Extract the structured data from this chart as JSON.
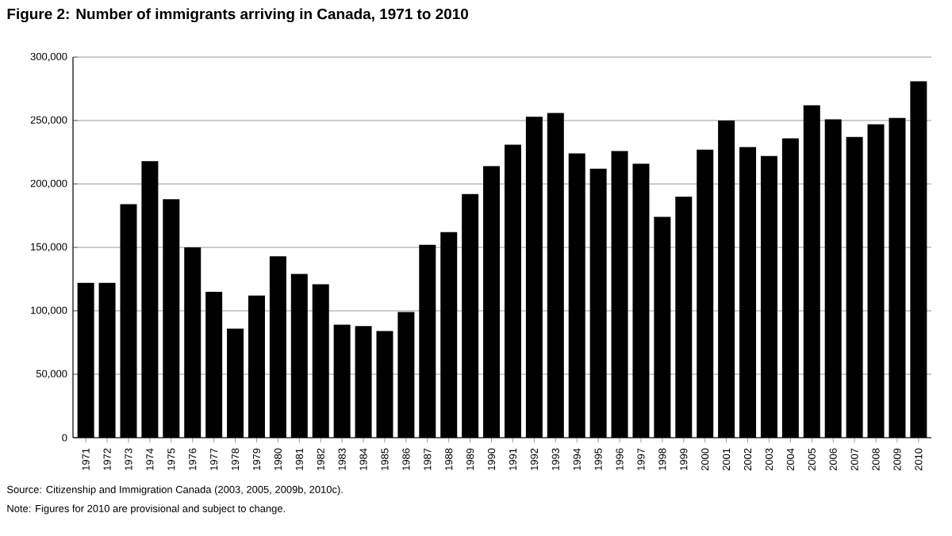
{
  "chart_data": {
    "type": "bar",
    "title": "Figure 2: Number of immigrants arriving in Canada, 1971 to 2010",
    "categories": [
      "1971",
      "1972",
      "1973",
      "1974",
      "1975",
      "1976",
      "1977",
      "1978",
      "1979",
      "1980",
      "1981",
      "1982",
      "1983",
      "1984",
      "1985",
      "1986",
      "1987",
      "1988",
      "1989",
      "1990",
      "1991",
      "1992",
      "1993",
      "1994",
      "1995",
      "1996",
      "1997",
      "1998",
      "1999",
      "2000",
      "2001",
      "2002",
      "2003",
      "2004",
      "2005",
      "2006",
      "2007",
      "2008",
      "2009",
      "2010"
    ],
    "values": [
      122000,
      122000,
      184000,
      218000,
      188000,
      150000,
      115000,
      86000,
      112000,
      143000,
      129000,
      121000,
      89000,
      88000,
      84000,
      99000,
      152000,
      162000,
      192000,
      214000,
      231000,
      253000,
      256000,
      224000,
      212000,
      226000,
      216000,
      174000,
      190000,
      227000,
      250000,
      229000,
      222000,
      236000,
      262000,
      251000,
      237000,
      247000,
      252000,
      281000
    ],
    "color": "#000000",
    "ylim": [
      0,
      300000
    ],
    "yticks": [
      {
        "value": 0,
        "label": "0"
      },
      {
        "value": 50000,
        "label": "50,000"
      },
      {
        "value": 100000,
        "label": "100,000"
      },
      {
        "value": 150000,
        "label": "150,000"
      },
      {
        "value": 200000,
        "label": "200,000"
      },
      {
        "value": 250000,
        "label": "250,000"
      },
      {
        "value": 300000,
        "label": "300,000"
      }
    ],
    "grid": "y",
    "annotations": [
      "Source: Citizenship and Immigration Canada (2003, 2005, 2009b, 2010c).",
      "Note: Figures for 2010 are provisional and subject to change."
    ]
  }
}
